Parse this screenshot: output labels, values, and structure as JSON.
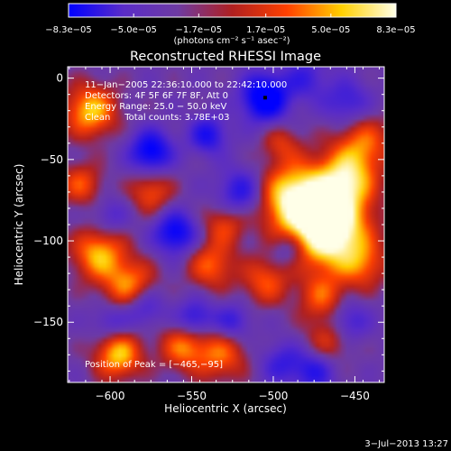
{
  "chart_data": {
    "type": "heatmap",
    "title": "Reconstructed RHESSI Image",
    "xlabel": "Heliocentric X (arcsec)",
    "ylabel": "Heliocentric Y (arcsec)",
    "xlim": [
      -626,
      -432
    ],
    "ylim": [
      -187,
      7
    ],
    "xticks": [
      -600,
      -550,
      -500,
      -450
    ],
    "xtick_labels": [
      "−600",
      "−550",
      "−500",
      "−450"
    ],
    "yticks": [
      0,
      -50,
      -100,
      -150
    ],
    "ytick_labels": [
      "0",
      "−50",
      "−100",
      "−150"
    ],
    "colorbar": {
      "min": -8.3e-05,
      "max": 8.3e-05,
      "ticks": [
        -8.3e-05,
        -5e-05,
        -1.7e-05,
        1.7e-05,
        5e-05,
        8.3e-05
      ],
      "tick_labels": [
        "−8.3e−05",
        "−5.0e−05",
        "−1.7e−05",
        "1.7e−05",
        "5.0e−05",
        "8.3e−05"
      ],
      "units_label": "(photons cm⁻² s⁻¹ asec⁻²)",
      "colormap": [
        "#0000ff",
        "#5a2cc8",
        "#6e3ba3",
        "#b02020",
        "#ff4000",
        "#ffd000",
        "#ffffe8"
      ]
    },
    "annotations": [
      "11−Jan−2005 22:36:10.000 to 22:42:10.000",
      "Detectors: 4F 5F 6F 7F 8F, Att 0",
      "Energy Range: 25.0 − 50.0 keV",
      "Clean     Total counts: 3.78E+03"
    ],
    "peak_label": "Position of Peak = [−465,−95]",
    "peak_position": [
      -465,
      -95
    ],
    "marker_position": [
      -505,
      -12
    ],
    "grid": false,
    "blobs": [
      {
        "x": -465,
        "y": -95,
        "a": 1.0,
        "s": 16
      },
      {
        "x": -475,
        "y": -80,
        "a": 0.75,
        "s": 18
      },
      {
        "x": -455,
        "y": -62,
        "a": 0.7,
        "s": 12
      },
      {
        "x": -490,
        "y": -72,
        "a": 0.6,
        "s": 13
      },
      {
        "x": -445,
        "y": -40,
        "a": 0.55,
        "s": 12
      },
      {
        "x": -445,
        "y": -115,
        "a": 0.45,
        "s": 10
      },
      {
        "x": -595,
        "y": -170,
        "a": 0.8,
        "s": 10
      },
      {
        "x": -607,
        "y": -108,
        "a": 0.75,
        "s": 11
      },
      {
        "x": -588,
        "y": -128,
        "a": 0.7,
        "s": 11
      },
      {
        "x": -612,
        "y": -20,
        "a": 0.8,
        "s": 11
      },
      {
        "x": -575,
        "y": -70,
        "a": 0.5,
        "s": 9
      },
      {
        "x": -555,
        "y": -165,
        "a": 0.6,
        "s": 10
      },
      {
        "x": -532,
        "y": -170,
        "a": 0.55,
        "s": 11
      },
      {
        "x": -538,
        "y": -115,
        "a": 0.55,
        "s": 10
      },
      {
        "x": -505,
        "y": -125,
        "a": 0.5,
        "s": 10
      },
      {
        "x": -470,
        "y": -135,
        "a": 0.5,
        "s": 10
      },
      {
        "x": -465,
        "y": -160,
        "a": 0.45,
        "s": 10
      },
      {
        "x": -530,
        "y": -90,
        "a": 0.45,
        "s": 9
      },
      {
        "x": -618,
        "y": -65,
        "a": 0.5,
        "s": 9
      },
      {
        "x": -495,
        "y": -40,
        "a": 0.35,
        "s": 8
      },
      {
        "x": -505,
        "y": -12,
        "a": -1.0,
        "s": 10
      },
      {
        "x": -560,
        "y": -95,
        "a": -0.75,
        "s": 9
      },
      {
        "x": -575,
        "y": -45,
        "a": -0.8,
        "s": 9
      },
      {
        "x": -540,
        "y": -35,
        "a": -0.6,
        "s": 8
      },
      {
        "x": -520,
        "y": -70,
        "a": -0.55,
        "s": 10
      },
      {
        "x": -580,
        "y": -140,
        "a": -0.5,
        "s": 9
      },
      {
        "x": -548,
        "y": -148,
        "a": -0.55,
        "s": 8
      },
      {
        "x": -525,
        "y": -150,
        "a": -0.45,
        "s": 8
      },
      {
        "x": -490,
        "y": -105,
        "a": -0.4,
        "s": 8
      },
      {
        "x": -455,
        "y": -150,
        "a": -0.5,
        "s": 9
      },
      {
        "x": -475,
        "y": -180,
        "a": -0.5,
        "s": 9
      },
      {
        "x": -455,
        "y": -15,
        "a": -0.45,
        "s": 10
      },
      {
        "x": -480,
        "y": 0,
        "a": -0.4,
        "s": 9
      },
      {
        "x": -600,
        "y": -150,
        "a": -0.35,
        "s": 8
      },
      {
        "x": -600,
        "y": -85,
        "a": -0.3,
        "s": 8
      },
      {
        "x": -495,
        "y": -175,
        "a": -0.4,
        "s": 9
      }
    ]
  },
  "footer": {
    "date": "3−Jul−2013 13:27"
  }
}
